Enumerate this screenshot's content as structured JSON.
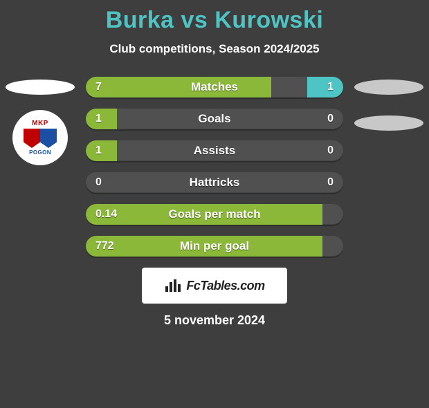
{
  "title": "Burka vs Kurowski",
  "subtitle": "Club competitions, Season 2024/2025",
  "date": "5 november 2024",
  "footer_label": "FcTables.com",
  "colors": {
    "background": "#3e3e3e",
    "title": "#4fc4c4",
    "text_white": "#ffffff",
    "left_fill": "#8cb83a",
    "left_fill_dim": "#7da634",
    "right_fill": "#4fc4c4",
    "row_track": "#505050"
  },
  "left_badge": {
    "top_text": "MKP",
    "bottom_text": "POGON"
  },
  "stats": [
    {
      "label": "Matches",
      "left_value": "7",
      "right_value": "1",
      "left_width_pct": 72,
      "right_width_pct": 14,
      "left_color": "#8cb83a",
      "right_color": "#4fc4c4"
    },
    {
      "label": "Goals",
      "left_value": "1",
      "right_value": "0",
      "left_width_pct": 12,
      "right_width_pct": 0,
      "left_color": "#8cb83a",
      "right_color": "#4fc4c4"
    },
    {
      "label": "Assists",
      "left_value": "1",
      "right_value": "0",
      "left_width_pct": 12,
      "right_width_pct": 0,
      "left_color": "#8cb83a",
      "right_color": "#4fc4c4"
    },
    {
      "label": "Hattricks",
      "left_value": "0",
      "right_value": "0",
      "left_width_pct": 0,
      "right_width_pct": 0,
      "left_color": "#8cb83a",
      "right_color": "#4fc4c4"
    },
    {
      "label": "Goals per match",
      "left_value": "0.14",
      "right_value": "",
      "left_width_pct": 92,
      "right_width_pct": 0,
      "left_color": "#8cb83a",
      "right_color": "#4fc4c4"
    },
    {
      "label": "Min per goal",
      "left_value": "772",
      "right_value": "",
      "left_width_pct": 92,
      "right_width_pct": 0,
      "left_color": "#8cb83a",
      "right_color": "#4fc4c4"
    }
  ]
}
